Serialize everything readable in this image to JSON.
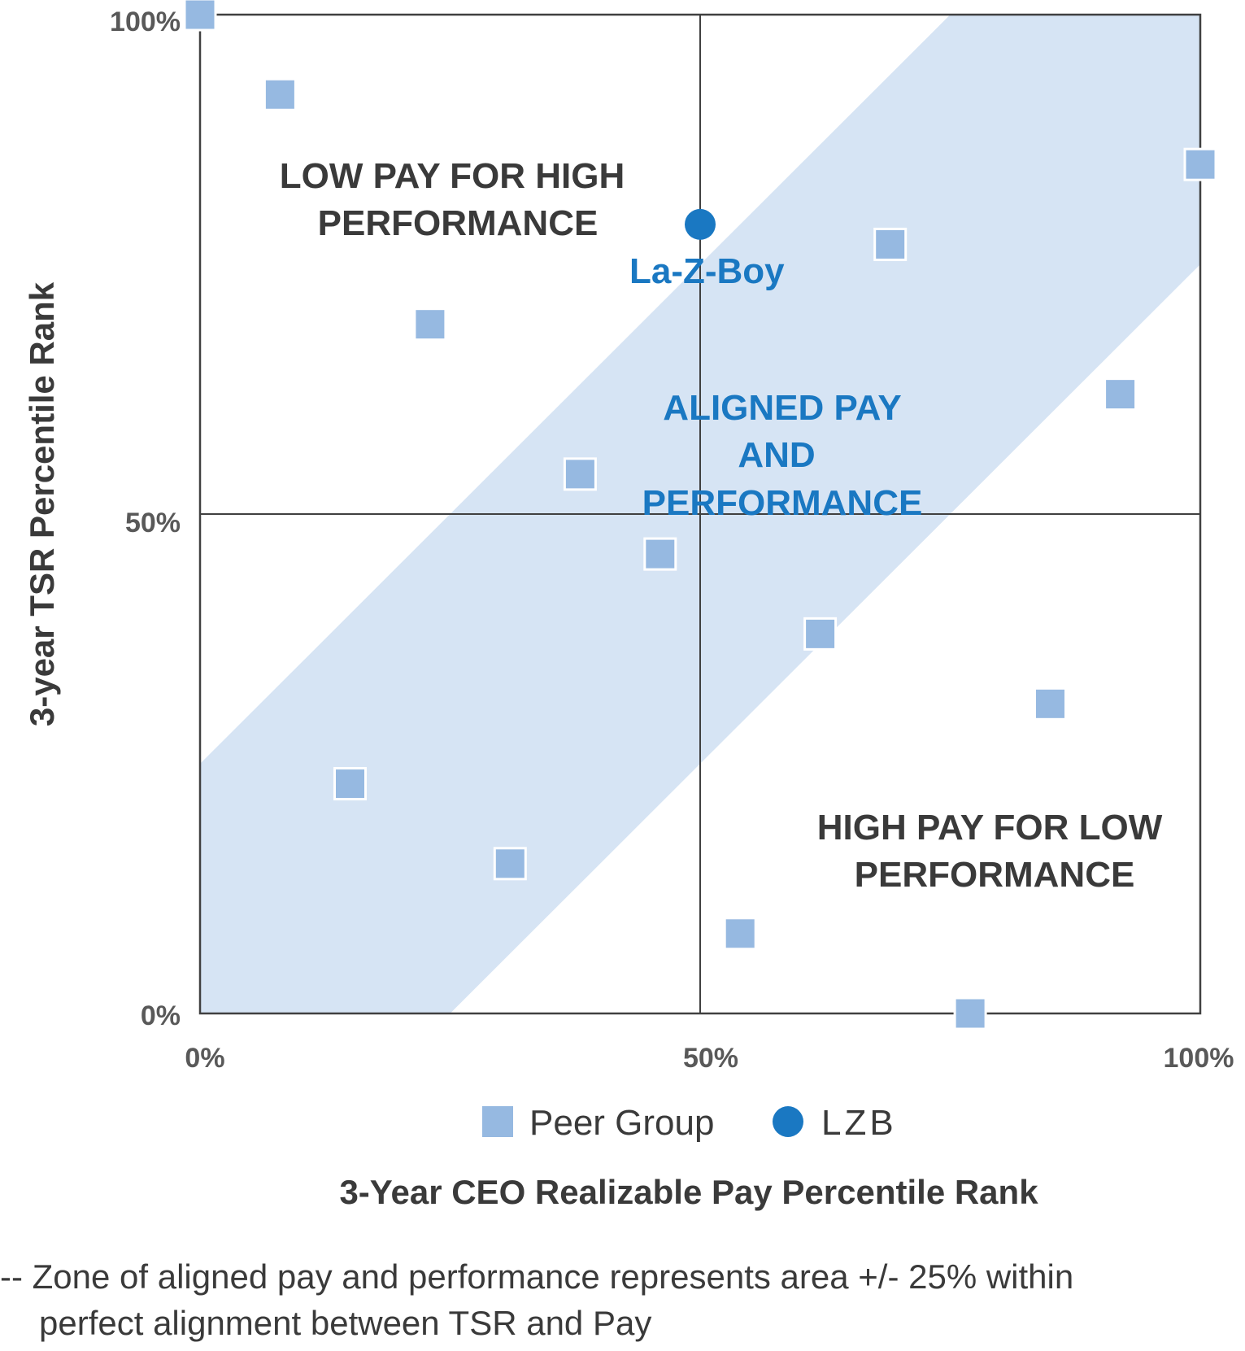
{
  "chart_data": {
    "type": "scatter",
    "xlabel": "3-Year CEO Realizable Pay Percentile Rank",
    "ylabel": "3-year TSR Percentile Rank",
    "xlim": [
      0,
      100
    ],
    "ylim": [
      0,
      100
    ],
    "x_ticks": [
      "0%",
      "50%",
      "100%"
    ],
    "y_ticks": [
      "0%",
      "50%",
      "100%"
    ],
    "band": {
      "label": "Zone of aligned pay and performance",
      "width_pct": 25,
      "color": "#d6e4f4"
    },
    "zones": {
      "upper_left": [
        "LOW PAY FOR HIGH",
        "PERFORMANCE"
      ],
      "center": [
        "ALIGNED PAY",
        "AND",
        "PERFORMANCE"
      ],
      "lower_right": [
        "HIGH PAY FOR LOW",
        "PERFORMANCE"
      ]
    },
    "series": [
      {
        "name": "Peer Group",
        "marker": "square",
        "color": "#96b9e1",
        "points": [
          {
            "x": 0,
            "y": 100
          },
          {
            "x": 8,
            "y": 92
          },
          {
            "x": 23,
            "y": 69
          },
          {
            "x": 38,
            "y": 54
          },
          {
            "x": 46,
            "y": 46
          },
          {
            "x": 15,
            "y": 23
          },
          {
            "x": 31,
            "y": 15
          },
          {
            "x": 54,
            "y": 8
          },
          {
            "x": 62,
            "y": 38
          },
          {
            "x": 69,
            "y": 77
          },
          {
            "x": 77,
            "y": 0
          },
          {
            "x": 85,
            "y": 31
          },
          {
            "x": 92,
            "y": 62
          },
          {
            "x": 100,
            "y": 85
          }
        ]
      },
      {
        "name": "LZB",
        "marker": "circle",
        "color": "#1a78c2",
        "points": [
          {
            "x": 50,
            "y": 79,
            "label": "La-Z-Boy"
          }
        ]
      }
    ],
    "legend": [
      {
        "label": "Peer Group",
        "marker": "square",
        "color": "#96b9e1"
      },
      {
        "label": "LZB",
        "marker": "circle",
        "color": "#1a78c2"
      }
    ],
    "footnote": [
      "-- Zone of aligned pay and performance represents area +/- 25% within",
      "perfect alignment between TSR and Pay"
    ]
  }
}
